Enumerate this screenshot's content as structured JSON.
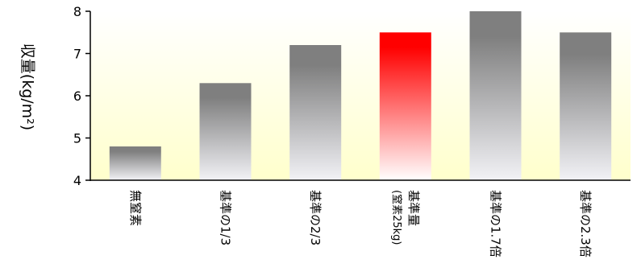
{
  "chart_data": {
    "type": "bar",
    "title": "",
    "xlabel": "",
    "ylabel": "収量(kg/m²)",
    "ylim": [
      4,
      8
    ],
    "yticks": [
      4,
      5,
      6,
      7,
      8
    ],
    "grid": false,
    "background": "gradient-white-to-pale-yellow",
    "categories": [
      {
        "label": "無窒素",
        "sub": ""
      },
      {
        "label": "基準の1/3",
        "sub": ""
      },
      {
        "label": "基準の2/3",
        "sub": ""
      },
      {
        "label": "基準量",
        "sub": "(窒素25kg)"
      },
      {
        "label": "基準の1.7倍",
        "sub": ""
      },
      {
        "label": "基準の2.3倍",
        "sub": ""
      }
    ],
    "values": [
      4.8,
      6.3,
      7.2,
      7.5,
      8.0,
      7.5
    ],
    "highlight_index": 3,
    "colors": {
      "bar_top": "#7f7f7f",
      "bar_bottom": "#f2f2f6",
      "highlight_top": "#ff0000",
      "highlight_bottom": "#ffffff",
      "bg_top": "#ffffff",
      "bg_bottom": "#ffffcc"
    }
  }
}
